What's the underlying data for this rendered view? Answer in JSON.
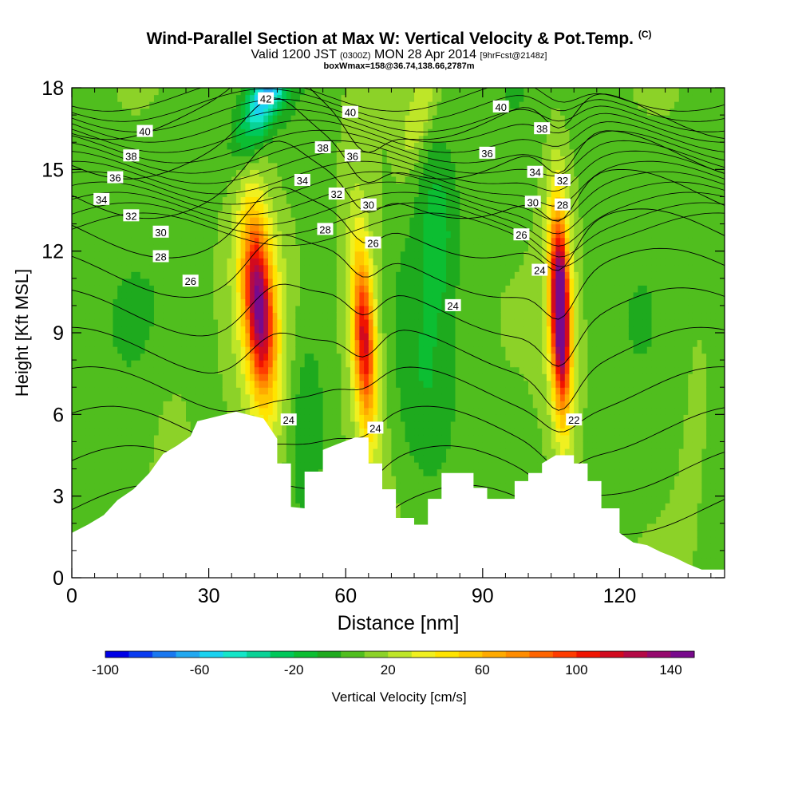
{
  "header": {
    "title": "Wind-Parallel Section at Max W: Vertical Velocity & Pot.Temp.",
    "copyright": "(C)",
    "subtitle_valid": "Valid 1200 JST",
    "subtitle_utc": "(0300Z)",
    "subtitle_date": "MON 28 Apr 2014",
    "subtitle_fcst": "[9hrFcst@2148z]",
    "boxline": "boxWmax=158@36.74,138.66,2787m"
  },
  "chart_data": {
    "type": "heatmap",
    "xlabel": "Distance [nm]",
    "ylabel": "Height [Kft MSL]",
    "xlim": [
      0,
      143
    ],
    "ylim": [
      0,
      18
    ],
    "x_ticks": [
      0,
      30,
      60,
      90,
      120
    ],
    "y_ticks": [
      0,
      3,
      6,
      9,
      12,
      15,
      18
    ],
    "colorbar": {
      "title": "Vertical Velocity [cm/s]",
      "tick_labels": [
        "-100",
        "-60",
        "-20",
        "20",
        "60",
        "100",
        "140"
      ],
      "min": -100,
      "max": 150,
      "step": 10,
      "colors": [
        "#0000e6",
        "#0b3cf0",
        "#1a78f0",
        "#22a8f0",
        "#19d2f0",
        "#14e6c8",
        "#0ad296",
        "#00c85a",
        "#0cbe32",
        "#1eaa1e",
        "#50be1e",
        "#8cd228",
        "#bee628",
        "#f0f020",
        "#ffe400",
        "#ffc800",
        "#ffaa00",
        "#ff8c00",
        "#ff6400",
        "#ff3c00",
        "#f01400",
        "#d20a1e",
        "#b40a46",
        "#960a6e",
        "#780a8c"
      ]
    },
    "w_fields": [
      {
        "center_x": 41,
        "center_y": 10.0,
        "peak": 115
      },
      {
        "center_x": 64,
        "center_y": 8.8,
        "peak": 90
      },
      {
        "center_x": 107,
        "center_y": 9.8,
        "peak": 150
      },
      {
        "center_x": 42,
        "center_y": 17.8,
        "peak": -55
      },
      {
        "center_x": 78,
        "center_y": 7.0,
        "peak": -22
      }
    ],
    "theta_levels": [
      22,
      24,
      26,
      28,
      30,
      32,
      34,
      36,
      38,
      40,
      42
    ],
    "contour_labels": [
      {
        "label": "42",
        "x": 42.5,
        "y": 17.6
      },
      {
        "label": "40",
        "x": 16,
        "y": 16.4
      },
      {
        "label": "40",
        "x": 61,
        "y": 17.1
      },
      {
        "label": "40",
        "x": 94,
        "y": 17.3
      },
      {
        "label": "38",
        "x": 13,
        "y": 15.5
      },
      {
        "label": "38",
        "x": 55,
        "y": 15.8
      },
      {
        "label": "38",
        "x": 103,
        "y": 16.5
      },
      {
        "label": "36",
        "x": 9.5,
        "y": 14.7
      },
      {
        "label": "36",
        "x": 61.5,
        "y": 15.5
      },
      {
        "label": "36",
        "x": 91,
        "y": 15.6
      },
      {
        "label": "34",
        "x": 6.5,
        "y": 13.9
      },
      {
        "label": "34",
        "x": 50.5,
        "y": 14.6
      },
      {
        "label": "34",
        "x": 101.5,
        "y": 14.9
      },
      {
        "label": "32",
        "x": 13,
        "y": 13.3
      },
      {
        "label": "32",
        "x": 58,
        "y": 14.1
      },
      {
        "label": "32",
        "x": 107.5,
        "y": 14.6
      },
      {
        "label": "30",
        "x": 19.5,
        "y": 12.7
      },
      {
        "label": "30",
        "x": 65,
        "y": 13.7
      },
      {
        "label": "30",
        "x": 101,
        "y": 13.8
      },
      {
        "label": "28",
        "x": 19.5,
        "y": 11.8
      },
      {
        "label": "28",
        "x": 55.5,
        "y": 12.8
      },
      {
        "label": "28",
        "x": 107.5,
        "y": 13.7
      },
      {
        "label": "26",
        "x": 26,
        "y": 10.9
      },
      {
        "label": "26",
        "x": 66,
        "y": 12.3
      },
      {
        "label": "26",
        "x": 98.5,
        "y": 12.6
      },
      {
        "label": "24",
        "x": 102.5,
        "y": 11.3
      },
      {
        "label": "24",
        "x": 83.5,
        "y": 10.0
      },
      {
        "label": "24",
        "x": 47.5,
        "y": 5.8
      },
      {
        "label": "24",
        "x": 66.5,
        "y": 5.5
      },
      {
        "label": "22",
        "x": 110,
        "y": 5.8
      }
    ],
    "terrain": [
      [
        0,
        1.65
      ],
      [
        3.5,
        1.95
      ],
      [
        7,
        2.3
      ],
      [
        10,
        2.85
      ],
      [
        13.5,
        3.25
      ],
      [
        17,
        3.85
      ],
      [
        20,
        4.55
      ],
      [
        23,
        4.85
      ],
      [
        26,
        5.2
      ],
      [
        27.5,
        5.75
      ],
      [
        36,
        6.1
      ],
      [
        42,
        5.85
      ],
      [
        45,
        5.1
      ],
      [
        45,
        4.2
      ],
      [
        48,
        4.2
      ],
      [
        48,
        2.6
      ],
      [
        51,
        2.55
      ],
      [
        51,
        3.9
      ],
      [
        55,
        3.9
      ],
      [
        55,
        4.7
      ],
      [
        58,
        4.9
      ],
      [
        62,
        5.15
      ],
      [
        65,
        5.15
      ],
      [
        65,
        4.2
      ],
      [
        68,
        4.2
      ],
      [
        68,
        3.25
      ],
      [
        71,
        3.25
      ],
      [
        71,
        2.2
      ],
      [
        75,
        2.2
      ],
      [
        75,
        1.95
      ],
      [
        78,
        1.95
      ],
      [
        78,
        2.9
      ],
      [
        81,
        2.9
      ],
      [
        81,
        3.85
      ],
      [
        88,
        3.85
      ],
      [
        88,
        3.3
      ],
      [
        91,
        3.3
      ],
      [
        91,
        2.9
      ],
      [
        97,
        2.9
      ],
      [
        97,
        3.55
      ],
      [
        100,
        3.55
      ],
      [
        100,
        3.85
      ],
      [
        103,
        3.85
      ],
      [
        103,
        4.2
      ],
      [
        106,
        4.5
      ],
      [
        110,
        4.5
      ],
      [
        110,
        4.2
      ],
      [
        113,
        4.2
      ],
      [
        113,
        3.55
      ],
      [
        116,
        3.55
      ],
      [
        116,
        2.55
      ],
      [
        120,
        2.55
      ],
      [
        120,
        1.65
      ],
      [
        123,
        1.3
      ],
      [
        126,
        1.2
      ],
      [
        129,
        0.95
      ],
      [
        132,
        0.75
      ],
      [
        135,
        0.5
      ],
      [
        138,
        0.3
      ],
      [
        143,
        0.3
      ]
    ]
  }
}
